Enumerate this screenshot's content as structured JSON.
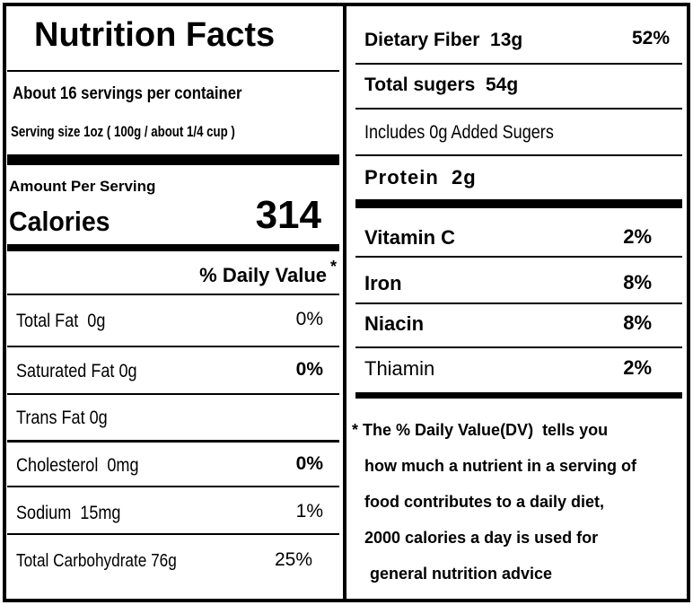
{
  "title": "Nutrition Facts",
  "servings": "About 16 servings per container",
  "serving_size": "Serving size 1oz ( 100g / about 1/4 cup )",
  "amount_per_serving": "Amount Per Serving",
  "calories": {
    "label": "Calories",
    "value": "314"
  },
  "daily_value_header": {
    "label": "% Daily Value",
    "mark": "*"
  },
  "left_rows": [
    {
      "name": "Total Fat  0g",
      "dv": "0%"
    },
    {
      "name": "Saturated Fat 0g",
      "dv": "0%"
    },
    {
      "name": "Trans Fat 0g"
    },
    {
      "name": "Cholesterol  0mg",
      "dv": "0%"
    },
    {
      "name": "Sodium  15mg",
      "dv": "1%"
    },
    {
      "name": "Total Carbohydrate 76g",
      "dv": "25%"
    }
  ],
  "right_rows": [
    {
      "name": "Dietary Fiber  13g",
      "dv": "52%"
    },
    {
      "name": "Total sugers  54g"
    },
    {
      "name": "Includes 0g Added Sugers"
    },
    {
      "name": "Protein  2g"
    }
  ],
  "vitamins": [
    {
      "name": "Vitamin C",
      "dv": "2%"
    },
    {
      "name": "Iron",
      "dv": "8%"
    },
    {
      "name": "Niacin",
      "dv": "8%"
    },
    {
      "name": "Thiamin",
      "dv": "2%"
    }
  ],
  "footnote": [
    "* The % Daily Value(DV)  tells you",
    "how much a nutrient in a serving of",
    "food contributes to a daily diet,",
    "2000 calories a day is used for",
    "general nutrition advice"
  ]
}
